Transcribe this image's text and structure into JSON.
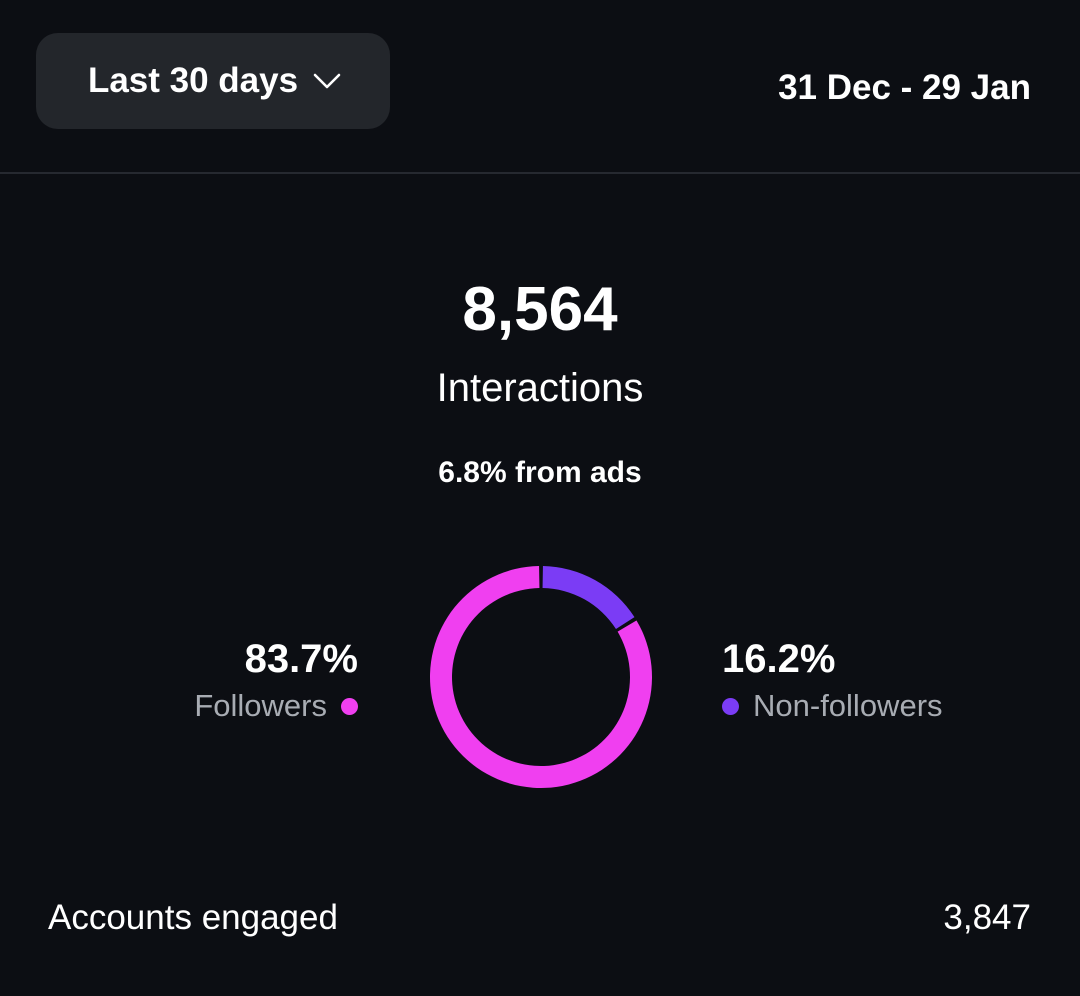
{
  "header": {
    "range_label": "Last 30 days",
    "date_range": "31 Dec - 29 Jan"
  },
  "summary": {
    "total": "8,564",
    "total_label": "Interactions",
    "ads_share": "6.8% from ads"
  },
  "colors": {
    "followers": "#f03ff0",
    "non_followers": "#7b3cf5",
    "background": "#0c0e13"
  },
  "icons": {
    "range_chevron": "chevron-down-icon"
  },
  "chart_data": {
    "type": "pie",
    "categories": [
      "Followers",
      "Non-followers"
    ],
    "values": [
      83.7,
      16.2
    ],
    "labels": [
      "83.7%",
      "16.2%"
    ]
  },
  "footer": {
    "accounts_engaged_label": "Accounts engaged",
    "accounts_engaged_value": "3,847"
  }
}
